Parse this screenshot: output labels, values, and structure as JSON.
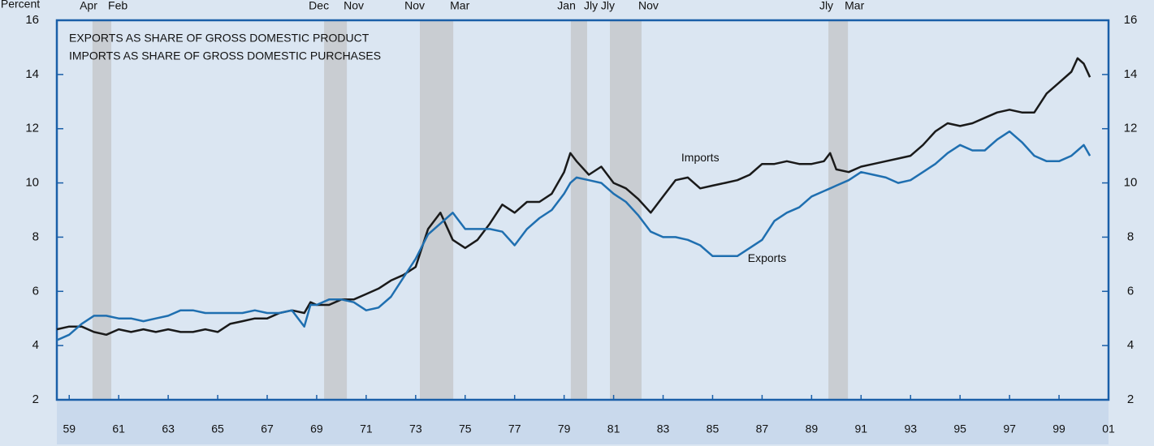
{
  "chart_data": {
    "type": "line",
    "y_axis_label": "Percent",
    "header_lines": [
      "EXPORTS AS SHARE OF GROSS DOMESTIC PRODUCT",
      "IMPORTS AS SHARE OF GROSS DOMESTIC PURCHASES"
    ],
    "annotations": [
      {
        "text": "Imports",
        "x": 1984.5,
        "y": 10.9
      },
      {
        "text": "Exports",
        "x": 1987.2,
        "y": 7.2
      }
    ],
    "x": [
      1958.5,
      1959,
      1959.5,
      1960,
      1960.5,
      1961,
      1961.5,
      1962,
      1962.5,
      1963,
      1963.5,
      1964,
      1964.5,
      1965,
      1965.5,
      1966,
      1966.5,
      1967,
      1967.5,
      1968,
      1968.5,
      1968.75,
      1969,
      1969.5,
      1970,
      1970.5,
      1971,
      1971.5,
      1972,
      1972.5,
      1973,
      1973.5,
      1974,
      1974.5,
      1975,
      1975.5,
      1976,
      1976.5,
      1977,
      1977.5,
      1978,
      1978.5,
      1979,
      1979.25,
      1979.5,
      1980,
      1980.5,
      1981,
      1981.5,
      1982,
      1982.5,
      1983,
      1983.5,
      1984,
      1984.5,
      1985,
      1985.5,
      1986,
      1986.5,
      1987,
      1987.5,
      1988,
      1988.5,
      1989,
      1989.5,
      1989.75,
      1990,
      1990.5,
      1991,
      1991.5,
      1992,
      1992.5,
      1993,
      1993.5,
      1994,
      1994.5,
      1995,
      1995.5,
      1996,
      1996.5,
      1997,
      1997.5,
      1998,
      1998.5,
      1999,
      1999.5,
      1999.75,
      2000,
      2000.25
    ],
    "series": [
      {
        "name": "Imports",
        "color": "#1a1a1a",
        "values": [
          4.6,
          4.7,
          4.7,
          4.5,
          4.4,
          4.6,
          4.5,
          4.6,
          4.5,
          4.6,
          4.5,
          4.5,
          4.6,
          4.5,
          4.8,
          4.9,
          5.0,
          5.0,
          5.2,
          5.3,
          5.2,
          5.6,
          5.5,
          5.5,
          5.7,
          5.7,
          5.9,
          6.1,
          6.4,
          6.6,
          6.9,
          8.3,
          8.9,
          7.9,
          7.6,
          7.9,
          8.5,
          9.2,
          8.9,
          9.3,
          9.3,
          9.6,
          10.4,
          11.1,
          10.8,
          10.3,
          10.6,
          10.0,
          9.8,
          9.4,
          8.9,
          9.5,
          10.1,
          10.2,
          9.8,
          9.9,
          10.0,
          10.1,
          10.3,
          10.7,
          10.7,
          10.8,
          10.7,
          10.7,
          10.8,
          11.1,
          10.5,
          10.4,
          10.6,
          10.7,
          10.8,
          10.9,
          11.0,
          11.4,
          11.9,
          12.2,
          12.1,
          12.2,
          12.4,
          12.6,
          12.7,
          12.6,
          12.6,
          13.3,
          13.7,
          14.1,
          14.6,
          14.4,
          13.9
        ]
      },
      {
        "name": "Exports",
        "color": "#1f6fb0",
        "values": [
          4.2,
          4.4,
          4.8,
          5.1,
          5.1,
          5.0,
          5.0,
          4.9,
          5.0,
          5.1,
          5.3,
          5.3,
          5.2,
          5.2,
          5.2,
          5.2,
          5.3,
          5.2,
          5.2,
          5.3,
          4.7,
          5.5,
          5.5,
          5.7,
          5.7,
          5.6,
          5.3,
          5.4,
          5.8,
          6.5,
          7.2,
          8.1,
          8.5,
          8.9,
          8.3,
          8.3,
          8.3,
          8.2,
          7.7,
          8.3,
          8.7,
          9.0,
          9.6,
          10.0,
          10.2,
          10.1,
          10.0,
          9.6,
          9.3,
          8.8,
          8.2,
          8.0,
          8.0,
          7.9,
          7.7,
          7.3,
          7.3,
          7.3,
          7.6,
          7.9,
          8.6,
          8.9,
          9.1,
          9.5,
          9.7,
          9.8,
          9.9,
          10.1,
          10.4,
          10.3,
          10.2,
          10.0,
          10.1,
          10.4,
          10.7,
          11.1,
          11.4,
          11.2,
          11.2,
          11.6,
          11.9,
          11.5,
          11.0,
          10.8,
          10.8,
          11.0,
          11.2,
          11.4,
          11.0
        ]
      }
    ],
    "recessions": [
      {
        "start": 1959.94,
        "end": 1960.7,
        "start_label": "Apr",
        "end_label": "Feb"
      },
      {
        "start": 1969.3,
        "end": 1970.22,
        "start_label": "Dec",
        "end_label": "Nov"
      },
      {
        "start": 1973.17,
        "end": 1974.52,
        "start_label": "Nov",
        "end_label": "Mar"
      },
      {
        "start": 1979.27,
        "end": 1979.93,
        "start_label": "Jan",
        "end_label": "Jly"
      },
      {
        "start": 1980.85,
        "end": 1982.13,
        "start_label": "Jly",
        "end_label": "Nov"
      },
      {
        "start": 1989.68,
        "end": 1990.47,
        "start_label": "Jly",
        "end_label": "Mar"
      }
    ],
    "recession_color": "#c9cdd2",
    "xlim": [
      1958.5,
      2001
    ],
    "xticks": [
      {
        "value": 1959,
        "label": "59"
      },
      {
        "value": 1961,
        "label": "61"
      },
      {
        "value": 1963,
        "label": "63"
      },
      {
        "value": 1965,
        "label": "65"
      },
      {
        "value": 1967,
        "label": "67"
      },
      {
        "value": 1969,
        "label": "69"
      },
      {
        "value": 1971,
        "label": "71"
      },
      {
        "value": 1973,
        "label": "73"
      },
      {
        "value": 1975,
        "label": "75"
      },
      {
        "value": 1977,
        "label": "77"
      },
      {
        "value": 1979,
        "label": "79"
      },
      {
        "value": 1981,
        "label": "81"
      },
      {
        "value": 1983,
        "label": "83"
      },
      {
        "value": 1985,
        "label": "85"
      },
      {
        "value": 1987,
        "label": "87"
      },
      {
        "value": 1989,
        "label": "89"
      },
      {
        "value": 1991,
        "label": "91"
      },
      {
        "value": 1993,
        "label": "93"
      },
      {
        "value": 1995,
        "label": "95"
      },
      {
        "value": 1997,
        "label": "97"
      },
      {
        "value": 1999,
        "label": "99"
      },
      {
        "value": 2001,
        "label": "01"
      }
    ],
    "ylim": [
      2,
      16
    ],
    "yticks": [
      2,
      4,
      6,
      8,
      10,
      12,
      14,
      16
    ]
  }
}
